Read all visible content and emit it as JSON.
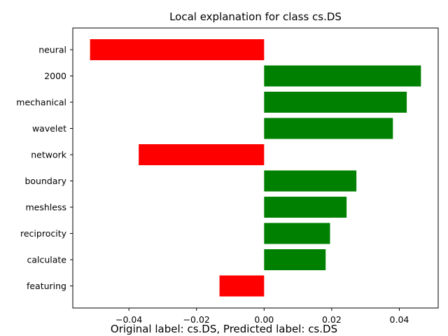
{
  "chart_data": {
    "type": "bar",
    "orientation": "horizontal",
    "title": "Local explanation for class cs.DS",
    "caption": "Original label: cs.DS, Predicted label: cs.DS",
    "categories": [
      "neural",
      "2000",
      "mechanical",
      "wavelet",
      "network",
      "boundary",
      "meshless",
      "reciprocity",
      "calculate",
      "featuring"
    ],
    "values": [
      -0.0515,
      0.0464,
      0.0422,
      0.0381,
      -0.0371,
      0.0273,
      0.0244,
      0.0195,
      0.0182,
      -0.0132
    ],
    "x_ticks": [
      -0.04,
      -0.02,
      0.0,
      0.02,
      0.04
    ],
    "x_tick_labels": [
      "−0.04",
      "−0.02",
      "0.00",
      "0.02",
      "0.04"
    ],
    "xlim": [
      -0.0566,
      0.0515
    ],
    "xlabel": "",
    "ylabel": "",
    "grid": false,
    "colors": {
      "positive": "#008000",
      "negative": "#ff0000",
      "axis": "#000000"
    }
  }
}
